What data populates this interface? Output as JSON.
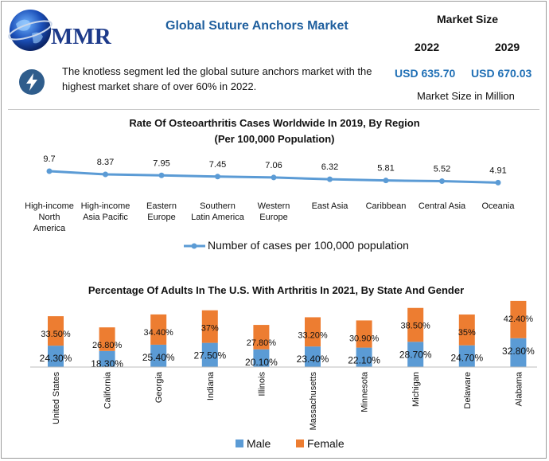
{
  "header": {
    "brand": "MMR",
    "title": "Global Suture Anchors Market",
    "market_size_title": "Market Size",
    "year_start": "2022",
    "year_end": "2029",
    "value_start": "USD 635.70",
    "value_end": "USD 670.03",
    "unit_note": "Market Size in Million",
    "headline": "The knotless segment led the global suture anchors market with the highest market share of over 60% in 2022."
  },
  "colors": {
    "brand_blue": "#1f5f9e",
    "line": "#5b9bd5",
    "male": "#5b9bd5",
    "female": "#ed7d31"
  },
  "icons": {
    "headline_icon": "lightning-bolt-icon",
    "logo": "globe-icon"
  },
  "chart_data": [
    {
      "type": "line",
      "title": "Rate Of Osteoarthritis Cases Worldwide In 2019, By Region",
      "subtitle": "(Per 100,000 Population)",
      "categories": [
        "High-income North America",
        "High-income Asia Pacific",
        "Eastern Europe",
        "Southern Latin America",
        "Western Europe",
        "East Asia",
        "Caribbean",
        "Central Asia",
        "Oceania"
      ],
      "category_lines": [
        [
          "High-income",
          "North",
          "America"
        ],
        [
          "High-income",
          "Asia Pacific"
        ],
        [
          "Eastern",
          "Europe"
        ],
        [
          "Southern",
          "Latin America"
        ],
        [
          "Western",
          "Europe"
        ],
        [
          "East Asia"
        ],
        [
          "Caribbean"
        ],
        [
          "Central Asia"
        ],
        [
          "Oceania"
        ]
      ],
      "series": [
        {
          "name": "Number of cases per 100,000 population",
          "values": [
            9.7,
            8.37,
            7.95,
            7.45,
            7.06,
            6.32,
            5.81,
            5.52,
            4.91
          ]
        }
      ],
      "value_labels": [
        "9.7",
        "8.37",
        "7.95",
        "7.45",
        "7.06",
        "6.32",
        "5.81",
        "5.52",
        "4.91"
      ],
      "legend_position": "bottom"
    },
    {
      "type": "bar",
      "stacked": true,
      "title": "Percentage Of Adults In The U.S. With Arthritis In 2021, By State And Gender",
      "categories": [
        "United States",
        "California",
        "Georgia",
        "Indiana",
        "Illinois",
        "Massachusetts",
        "Minnesota",
        "Michigan",
        "Delaware",
        "Alabama"
      ],
      "series": [
        {
          "name": "Male",
          "values": [
            24.3,
            18.3,
            25.4,
            27.5,
            20.1,
            23.4,
            22.1,
            28.7,
            24.7,
            32.8
          ],
          "labels": [
            "24.30%",
            "18.30%",
            "25.40%",
            "27.50%",
            "20.10%",
            "23.40%",
            "22.10%",
            "28.70%",
            "24.70%",
            "32.80%"
          ]
        },
        {
          "name": "Female",
          "values": [
            33.5,
            26.8,
            34.4,
            37,
            27.8,
            33.2,
            30.9,
            38.5,
            35,
            42.4
          ],
          "labels": [
            "33.50%",
            "26.80%",
            "34.40%",
            "37%",
            "27.80%",
            "33.20%",
            "30.90%",
            "38.50%",
            "35%",
            "42.40%"
          ]
        }
      ],
      "legend_position": "bottom"
    }
  ]
}
